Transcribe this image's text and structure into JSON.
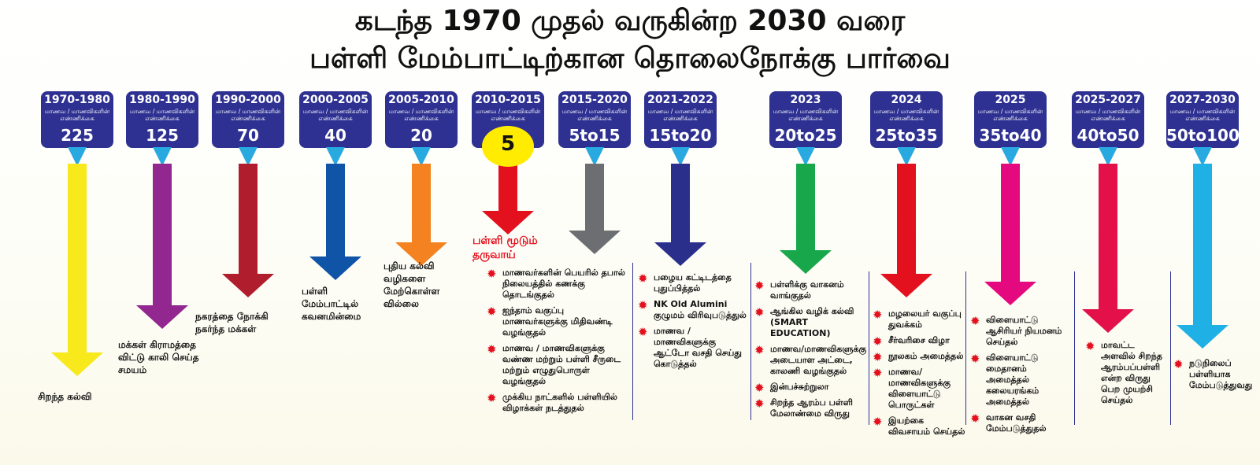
{
  "title_line1": "கடந்த 1970 முதல் வருகின்ற 2030 வரை",
  "title_line2": "பள்ளி மேம்பாட்டிற்கான தொலைநோக்கு பார்வை",
  "student_count_label": "மாணவ / மாணவிகளின் எண்ணிக்கை",
  "bullet_icon": "red-starburst",
  "periods": [
    {
      "years": "1970-1980",
      "count": "225",
      "arrow_color": "#f7e91b"
    },
    {
      "years": "1980-1990",
      "count": "125",
      "arrow_color": "#92278f"
    },
    {
      "years": "1990-2000",
      "count": "70",
      "arrow_color": "#b01e2e"
    },
    {
      "years": "2000-2005",
      "count": "40",
      "arrow_color": "#1054a8"
    },
    {
      "years": "2005-2010",
      "count": "20",
      "arrow_color": "#f58220"
    },
    {
      "years": "2010-2015",
      "count": "5",
      "arrow_color": "#e3101d"
    },
    {
      "years": "2015-2020",
      "count": "5to15",
      "arrow_color": "#6d6e71"
    },
    {
      "years": "2021-2022",
      "count": "15to20",
      "arrow_color": "#2b2f8c"
    },
    {
      "years": "2023",
      "count": "20to25",
      "arrow_color": "#18a84b"
    },
    {
      "years": "2024",
      "count": "25to35",
      "arrow_color": "#e3101d"
    },
    {
      "years": "2025",
      "count": "35to40",
      "arrow_color": "#e5097f"
    },
    {
      "years": "2025-2027",
      "count": "40to50",
      "arrow_color": "#e3104a"
    },
    {
      "years": "2027-2030",
      "count": "50to100",
      "arrow_color": "#1fb1e6"
    }
  ],
  "text_1970": "சிறந்த கல்வி",
  "text_1980": "மக்கள் கிராமத்தை விட்டு காலி செய்த சமயம்",
  "text_1990": "நகரத்தை நோக்கி நகர்ந்த மக்கள்",
  "text_2000": "பள்ளி மேம்பாட்டில் கவனமின்மை",
  "text_2005": "புதிய கல்வி வழிகளை மேற்கொள்ள வில்லை",
  "milestone_2010": "பள்ளி மூடும் தருவாய்",
  "items_2015": [
    "மாணவர்களின் பெயரில் தபால் நிலையத்தில் கணக்கு தொடங்குதல்",
    "ஐந்தாம் வகுப்பு மாணவர்களுக்கு மிதிவண்டி வழங்குதல்",
    "மாணவ / மாணவிகளுக்கு வண்ண மற்றும் பள்ளி சீருடை மற்றும் எழுதுபொருள் வழங்குதல்",
    "முக்கிய நாட்களில் பள்ளியில் விழாக்கள் நடத்துதல்"
  ],
  "items_2021": [
    "பழைய கட்டிடத்தை புதுப்பித்தல்",
    "NK Old Alumini குழுமம் விரிவுபடுத்துல்",
    "மாணவ / மாணவிகளுக்கு ஆட்டோ வசதி செய்து கொடுத்தல்"
  ],
  "items_2023": [
    "பள்ளிக்கு வாகனம் வாங்குதல்",
    "ஆங்கில வழிக் கல்வி (SMART EDUCATION)",
    "மாணவ/மாணவிகளுக்கு அடையாள அட்டை, காலணி வழங்குதல்",
    "இன்பச்சுற்றுலா",
    "சிறந்த ஆரம்ப பள்ளி மேலாண்மை விருது"
  ],
  "items_2024": [
    "மழலையர் வகுப்பு துவக்கம்",
    "சீர்வரிசை விழா",
    "நூலகம் அமைத்தல்",
    "மாணவ/மாணவிகளுக்கு விளையாட்டு பொருட்கள்",
    "இயற்கை விவசாயம் செய்தல்"
  ],
  "items_2025": [
    "விளையாட்டு ஆசிரியர் நியமனம் செய்தல்",
    "விளையாட்டு மைதானம் அமைத்தல் கலையரங்கம் அமைத்தல்",
    "வாகன வசதி மேம்படுத்துதல்"
  ],
  "items_2025_2027": [
    "மாவட்ட அளவில் சிறந்த ஆரம்பப்பள்ளி என்ற விருது பெற முயற்சி செய்தல்"
  ],
  "items_2027_2030": [
    "நடுநிலைப் பள்ளியாக மேம்படுத்துவது"
  ]
}
